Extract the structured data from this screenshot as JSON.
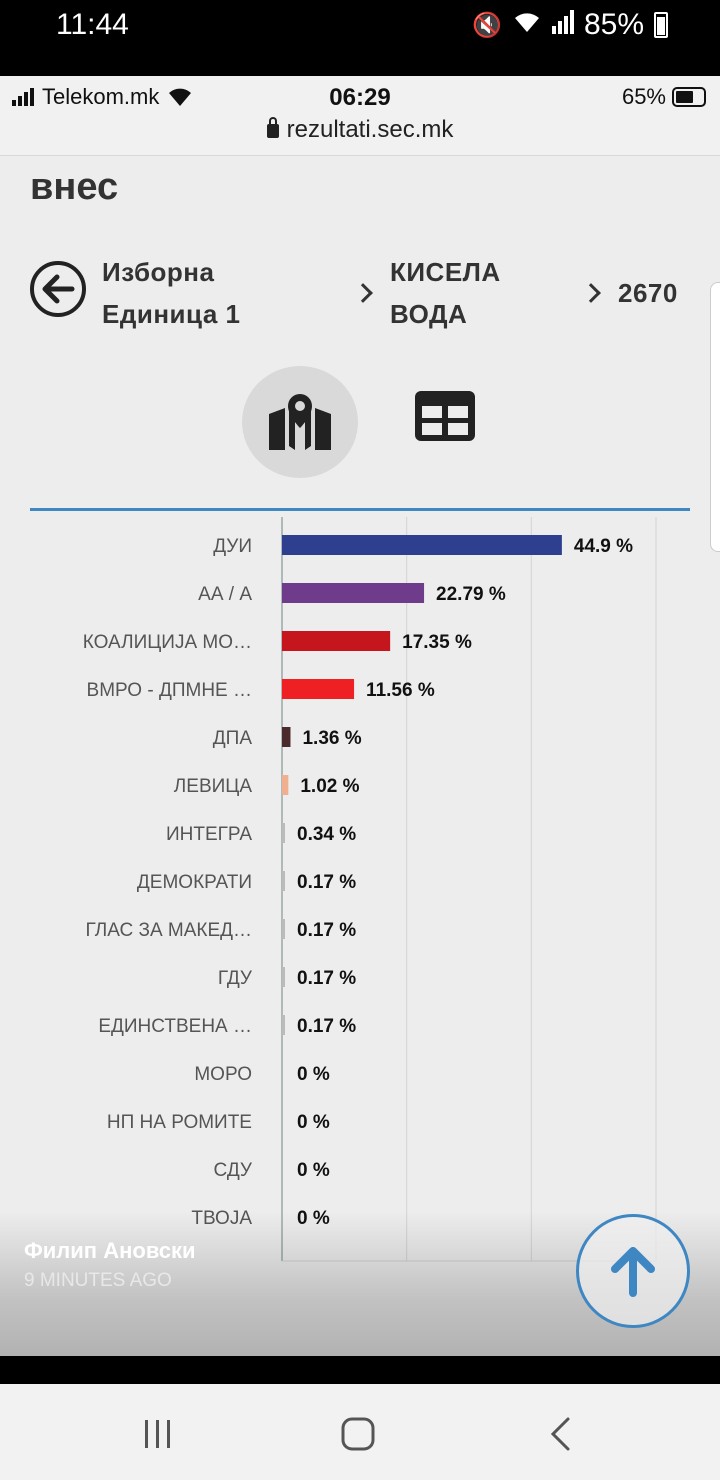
{
  "outer_status": {
    "time": "11:44",
    "battery": "85%"
  },
  "browser": {
    "carrier": "Telekom.mk",
    "time": "06:29",
    "battery": "65%",
    "url": "rezultati.sec.mk"
  },
  "page": {
    "heading": "внес",
    "breadcrumb": {
      "level1": "Изборна Единица 1",
      "level2": "КИСЕЛА ВОДА",
      "level3": "2670"
    }
  },
  "chart_data": {
    "type": "bar",
    "orientation": "horizontal",
    "categories": [
      "ДУИ",
      "АА / А",
      "КОАЛИЦИЈА МО…",
      "ВМРО - ДПМНЕ …",
      "ДПА",
      "ЛЕВИЦА",
      "ИНТЕГРА",
      "ДЕМОКРАТИ",
      "ГЛАС ЗА МАКЕД…",
      "ГДУ",
      "ЕДИНСТВЕНА …",
      "МОРО",
      "НП НА РОМИТЕ",
      "СДУ",
      "ТВОЈА"
    ],
    "values": [
      44.9,
      22.79,
      17.35,
      11.56,
      1.36,
      1.02,
      0.34,
      0.17,
      0.17,
      0.17,
      0.17,
      0,
      0,
      0,
      0
    ],
    "labels": [
      "44.9 %",
      "22.79 %",
      "17.35 %",
      "11.56 %",
      "1.36 %",
      "1.02 %",
      "0.34 %",
      "0.17 %",
      "0.17 %",
      "0.17 %",
      "0.17 %",
      "0 %",
      "0 %",
      "0 %",
      "0 %"
    ],
    "colors": [
      "#2e3f8f",
      "#6f3c8c",
      "#c4161c",
      "#ee2024",
      "#4a2a2a",
      "#f0b090",
      "#bbbbbb",
      "#bbbbbb",
      "#bbbbbb",
      "#bbbbbb",
      "#bbbbbb",
      "#bbbbbb",
      "#bbbbbb",
      "#bbbbbb",
      "#bbbbbb"
    ],
    "xlim": [
      0,
      60
    ],
    "grid": true
  },
  "caption": {
    "author": "Филип Ановски",
    "time": "9 MINUTES AGO"
  }
}
